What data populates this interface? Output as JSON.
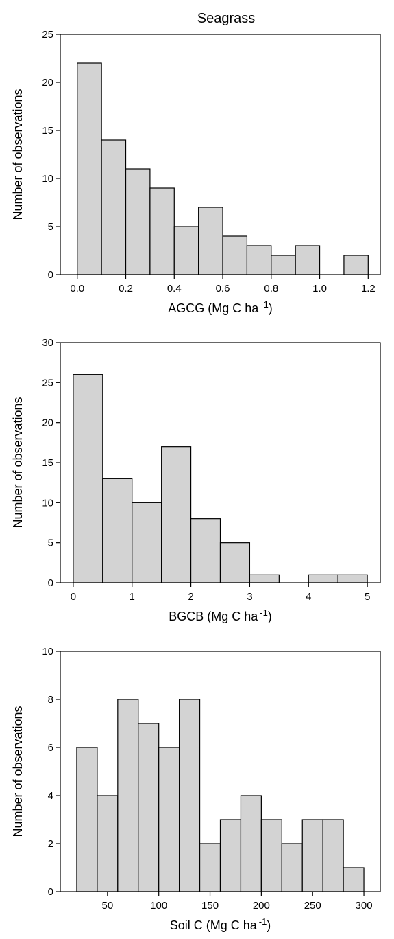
{
  "figure": {
    "title": "Seagrass"
  },
  "chart_data": [
    {
      "type": "bar",
      "histogram": true,
      "title": "Seagrass",
      "xlabel": "AGCG (Mg C ha",
      "xlabel_sup": "-1",
      "xlabel_close": ")",
      "ylabel": "Number of observations",
      "bin_edges": [
        0.0,
        0.1,
        0.2,
        0.3,
        0.4,
        0.5,
        0.6,
        0.7,
        0.8,
        0.9,
        1.0,
        1.1,
        1.2
      ],
      "values": [
        22,
        14,
        11,
        9,
        5,
        7,
        4,
        3,
        2,
        3,
        0,
        2
      ],
      "xlim": [
        -0.07,
        1.25
      ],
      "ylim": [
        0,
        25
      ],
      "xticks": [
        "0.0",
        "0.2",
        "0.4",
        "0.6",
        "0.8",
        "1.0",
        "1.2"
      ],
      "xtick_values": [
        0.0,
        0.2,
        0.4,
        0.6,
        0.8,
        1.0,
        1.2
      ],
      "yticks": [
        "0",
        "5",
        "10",
        "15",
        "20",
        "25"
      ],
      "ytick_values": [
        0,
        5,
        10,
        15,
        20,
        25
      ]
    },
    {
      "type": "bar",
      "histogram": true,
      "title": "",
      "xlabel": "BGCB (Mg C ha",
      "xlabel_sup": "-1",
      "xlabel_close": ")",
      "ylabel": "Number of observations",
      "bin_edges": [
        0,
        0.5,
        1.0,
        1.5,
        2.0,
        2.5,
        3.0,
        3.5,
        4.0,
        4.5,
        5.0
      ],
      "values": [
        26,
        13,
        10,
        17,
        8,
        5,
        1,
        0,
        1,
        1
      ],
      "xlim": [
        -0.22,
        5.22
      ],
      "ylim": [
        0,
        30
      ],
      "xticks": [
        "0",
        "1",
        "2",
        "3",
        "4",
        "5"
      ],
      "xtick_values": [
        0,
        1,
        2,
        3,
        4,
        5
      ],
      "yticks": [
        "0",
        "5",
        "10",
        "15",
        "20",
        "25",
        "30"
      ],
      "ytick_values": [
        0,
        5,
        10,
        15,
        20,
        25,
        30
      ]
    },
    {
      "type": "bar",
      "histogram": true,
      "title": "",
      "xlabel": "Soil C  (Mg C ha",
      "xlabel_sup": "-1",
      "xlabel_close": ")",
      "ylabel": "Number of observations",
      "bin_edges": [
        20,
        40,
        60,
        80,
        100,
        120,
        140,
        160,
        180,
        200,
        220,
        240,
        260,
        280,
        300
      ],
      "values": [
        6,
        4,
        8,
        7,
        6,
        8,
        2,
        3,
        4,
        3,
        2,
        3,
        3,
        1
      ],
      "xlim": [
        4,
        316
      ],
      "ylim": [
        0,
        10
      ],
      "xticks": [
        "50",
        "100",
        "150",
        "200",
        "250",
        "300"
      ],
      "xtick_values": [
        50,
        100,
        150,
        200,
        250,
        300
      ],
      "yticks": [
        "0",
        "2",
        "4",
        "6",
        "8",
        "10"
      ],
      "ytick_values": [
        0,
        2,
        4,
        6,
        8,
        10
      ]
    }
  ]
}
